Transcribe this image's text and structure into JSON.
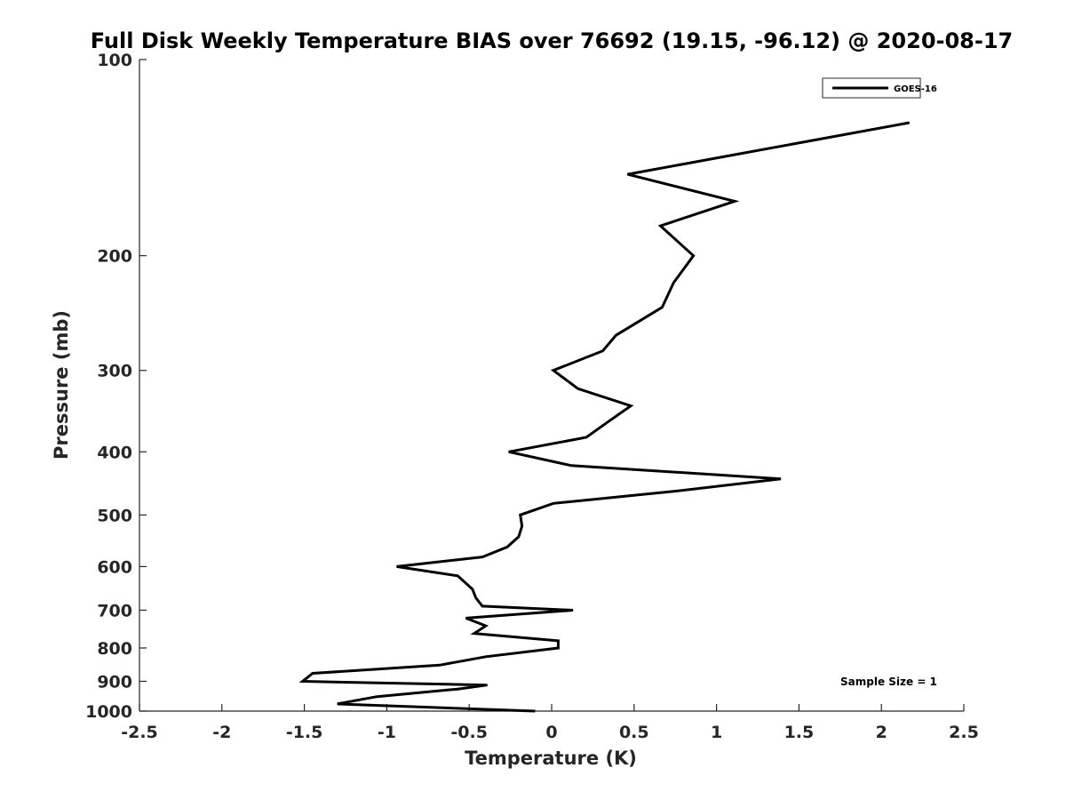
{
  "chart_data": {
    "type": "line",
    "title": "Full Disk Weekly Temperature BIAS over 76692 (19.15, -96.12) @ 2020-08-17",
    "xlabel": "Temperature (K)",
    "ylabel": "Pressure (mb)",
    "xlim": [
      -2.5,
      2.5
    ],
    "ylim": [
      100,
      1000
    ],
    "y_scale": "log",
    "y_reversed": true,
    "x_ticks": [
      -2.5,
      -2,
      -1.5,
      -1,
      -0.5,
      0,
      0.5,
      1,
      1.5,
      2,
      2.5
    ],
    "x_tick_labels": [
      "-2.5",
      "-2",
      "-1.5",
      "-1",
      "-0.5",
      "0",
      "0.5",
      "1",
      "1.5",
      "2",
      "2.5"
    ],
    "y_ticks": [
      100,
      200,
      300,
      400,
      500,
      600,
      700,
      800,
      900,
      1000
    ],
    "y_tick_labels": [
      "100",
      "200",
      "300",
      "400",
      "500",
      "600",
      "700",
      "800",
      "900",
      "1000"
    ],
    "grid": false,
    "legend_position": "top-right",
    "series": [
      {
        "name": "GOES-16",
        "color": "#000000",
        "x": [
          2.17,
          0.46,
          1.11,
          0.66,
          0.86,
          0.74,
          0.67,
          0.39,
          0.31,
          0.01,
          0.16,
          0.48,
          0.34,
          0.21,
          -0.26,
          0.12,
          1.39,
          0.74,
          0.01,
          -0.19,
          -0.18,
          -0.2,
          -0.27,
          -0.42,
          -0.94,
          -0.57,
          -0.48,
          -0.46,
          -0.42,
          0.13,
          -0.52,
          -0.4,
          -0.47,
          0.04,
          0.04,
          -0.4,
          -0.68,
          -1.45,
          -1.51,
          -0.39,
          -0.57,
          -1.06,
          -1.3,
          -0.1
        ],
        "y": [
          125,
          150,
          165,
          180,
          200,
          220,
          240,
          265,
          280,
          300,
          320,
          340,
          360,
          380,
          400,
          420,
          440,
          460,
          480,
          500,
          520,
          540,
          560,
          580,
          600,
          620,
          650,
          670,
          690,
          700,
          720,
          740,
          760,
          780,
          800,
          825,
          850,
          875,
          900,
          912,
          925,
          950,
          975,
          1000
        ]
      }
    ],
    "legend_label": "GOES-16",
    "annotation": "Sample Size = 1"
  }
}
